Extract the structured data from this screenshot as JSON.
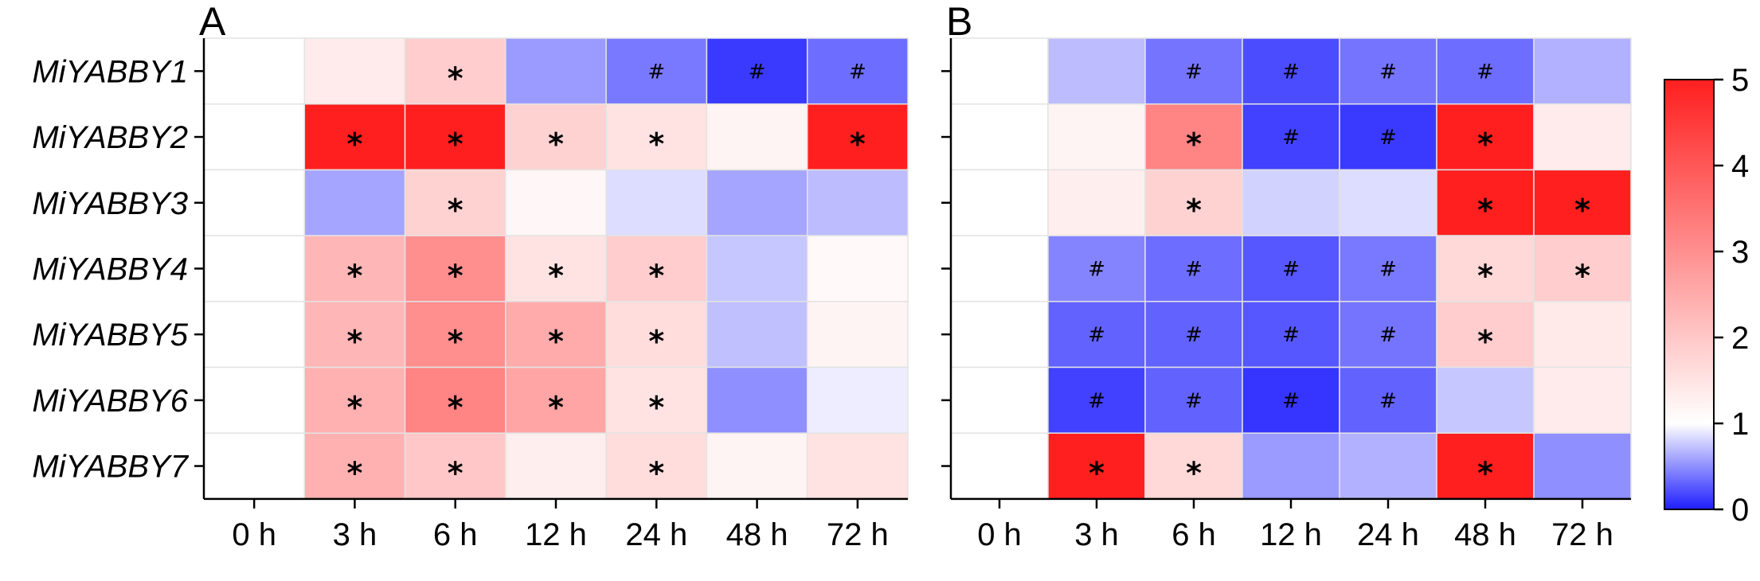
{
  "chart_data": {
    "type": "heatmap",
    "genes": [
      "MiYABBY1",
      "MiYABBY2",
      "MiYABBY3",
      "MiYABBY4",
      "MiYABBY5",
      "MiYABBY6",
      "MiYABBY7"
    ],
    "time_points": [
      "0 h",
      "3 h",
      "6 h",
      "12 h",
      "24 h",
      "48 h",
      "72 h"
    ],
    "colorbar": {
      "min": 0,
      "mid": 1,
      "max": 5,
      "ticks": [
        "0",
        "1",
        "2",
        "3",
        "4",
        "5"
      ],
      "low_color": "#1f1fff",
      "mid_color": "#ffffff",
      "high_color": "#ff1f1f"
    },
    "panels": [
      {
        "label": "A",
        "values": [
          [
            1.0,
            1.35,
            1.9,
            0.55,
            0.4,
            0.12,
            0.35
          ],
          [
            1.0,
            5.0,
            5.0,
            1.8,
            1.5,
            1.2,
            5.0
          ],
          [
            1.0,
            0.6,
            1.8,
            1.15,
            0.85,
            0.6,
            0.7
          ],
          [
            1.0,
            2.3,
            3.0,
            1.5,
            1.9,
            0.75,
            1.1
          ],
          [
            1.0,
            2.3,
            3.0,
            2.5,
            1.6,
            0.72,
            1.2
          ],
          [
            1.0,
            2.4,
            3.2,
            2.6,
            1.5,
            0.5,
            0.92
          ],
          [
            1.0,
            2.4,
            2.0,
            1.3,
            1.6,
            1.2,
            1.5
          ]
        ],
        "marks": [
          [
            "",
            "",
            "*",
            "",
            "#",
            "#",
            "#"
          ],
          [
            "",
            "*",
            "*",
            "*",
            "*",
            "",
            "*"
          ],
          [
            "",
            "",
            "*",
            "",
            "",
            "",
            ""
          ],
          [
            "",
            "*",
            "*",
            "*",
            "*",
            "",
            ""
          ],
          [
            "",
            "*",
            "*",
            "*",
            "*",
            "",
            ""
          ],
          [
            "",
            "*",
            "*",
            "*",
            "*",
            "",
            ""
          ],
          [
            "",
            "*",
            "*",
            "",
            "*",
            "",
            ""
          ]
        ]
      },
      {
        "label": "B",
        "values": [
          [
            1.0,
            0.7,
            0.38,
            0.2,
            0.38,
            0.35,
            0.65
          ],
          [
            1.0,
            1.2,
            3.2,
            0.15,
            0.12,
            5.0,
            1.35
          ],
          [
            1.0,
            1.3,
            1.8,
            0.8,
            0.85,
            5.0,
            5.0
          ],
          [
            1.0,
            0.45,
            0.35,
            0.25,
            0.4,
            1.7,
            1.9
          ],
          [
            1.0,
            0.3,
            0.3,
            0.25,
            0.38,
            1.9,
            1.4
          ],
          [
            1.0,
            0.15,
            0.3,
            0.1,
            0.3,
            0.75,
            1.35
          ],
          [
            1.0,
            5.0,
            1.7,
            0.55,
            0.65,
            5.0,
            0.5
          ]
        ],
        "marks": [
          [
            "",
            "",
            "#",
            "#",
            "#",
            "#",
            ""
          ],
          [
            "",
            "",
            "*",
            "#",
            "#",
            "*",
            ""
          ],
          [
            "",
            "",
            "*",
            "",
            "",
            "*",
            "*"
          ],
          [
            "",
            "#",
            "#",
            "#",
            "#",
            "*",
            "*"
          ],
          [
            "",
            "#",
            "#",
            "#",
            "#",
            "*",
            ""
          ],
          [
            "",
            "#",
            "#",
            "#",
            "#",
            "",
            ""
          ],
          [
            "",
            "*",
            "*",
            "",
            "",
            "*",
            ""
          ]
        ]
      }
    ]
  }
}
